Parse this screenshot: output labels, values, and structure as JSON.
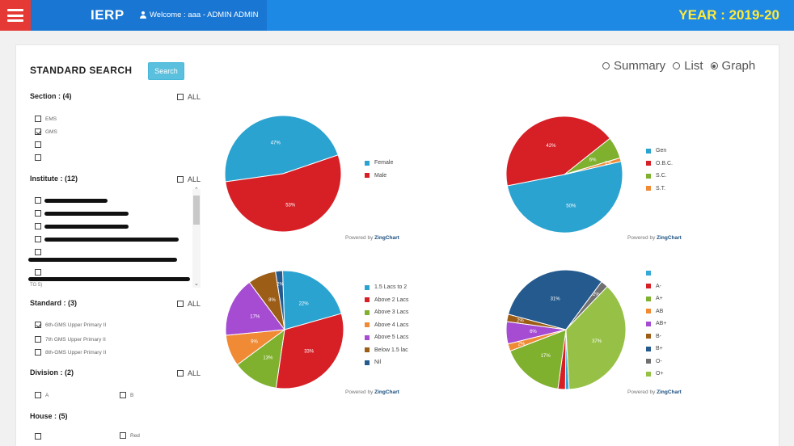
{
  "header": {
    "brand": "IERP",
    "welcome": "Welcome :  aaa - ADMIN ADMIN",
    "year": "YEAR : 2019-20"
  },
  "search": {
    "title": "STANDARD SEARCH",
    "button": "Search"
  },
  "view_options": [
    "Summary",
    "List",
    "Graph"
  ],
  "filters": {
    "all_label": "ALL",
    "section": {
      "label": "Section : (4)",
      "items": [
        {
          "label": "EMS",
          "checked": false
        },
        {
          "label": "GMS",
          "checked": true
        },
        {
          "label": "",
          "checked": false
        },
        {
          "label": "",
          "checked": false
        }
      ]
    },
    "institute": {
      "label": "Institute : (12)",
      "items": [
        "",
        "",
        "",
        "",
        "",
        "",
        ""
      ],
      "cut_label": "TO 5)"
    },
    "standard": {
      "label": "Standard : (3)",
      "items": [
        {
          "label": "6th-GMS Upper Primary II",
          "checked": true
        },
        {
          "label": "7th GMS Upper Primary II",
          "checked": false
        },
        {
          "label": "8th-GMS Upper Primary II",
          "checked": false
        }
      ]
    },
    "division": {
      "label": "Division : (2)",
      "items": [
        "A",
        "B"
      ]
    },
    "house": {
      "label": "House : (5)",
      "items": [
        "",
        "Red"
      ]
    }
  },
  "powered_by": {
    "prefix": "Powered by ",
    "brand": "ZingChart"
  },
  "colors": {
    "blue": "#2ba3d0",
    "red": "#d71f26",
    "green": "#7fb02e",
    "orange": "#f08a35",
    "purple": "#a54cd2",
    "brown": "#9c5d17",
    "navy": "#255a8e",
    "grey": "#707070",
    "lightgreen": "#97c146",
    "cyan": "#36a8d8"
  },
  "chart_data": [
    {
      "type": "pie",
      "series": [
        {
          "name": "Female",
          "value": 47,
          "label": "47%",
          "color": "#2ba3d0"
        },
        {
          "name": "Male",
          "value": 53,
          "label": "53%",
          "color": "#d71f26"
        }
      ]
    },
    {
      "type": "pie",
      "series": [
        {
          "name": "Gen",
          "value": 50,
          "label": "50%",
          "color": "#2ba3d0"
        },
        {
          "name": "O.B.C.",
          "value": 42,
          "label": "42%",
          "color": "#d71f26"
        },
        {
          "name": "S.C.",
          "value": 6,
          "label": "6%",
          "color": "#7fb02e"
        },
        {
          "name": "S.T.",
          "value": 1,
          "label": "1%",
          "color": "#f08a35"
        }
      ]
    },
    {
      "type": "pie",
      "series": [
        {
          "name": "1.5 Lacs to 2",
          "value": 22,
          "label": "22%",
          "color": "#2ba3d0"
        },
        {
          "name": "Above 2 Lacs",
          "value": 33,
          "label": "33%",
          "color": "#d71f26"
        },
        {
          "name": "Above 3 Lacs",
          "value": 13,
          "label": "13%",
          "color": "#7fb02e"
        },
        {
          "name": "Above 4 Lacs",
          "value": 9,
          "label": "9%",
          "color": "#f08a35"
        },
        {
          "name": "Above 5 Lacs",
          "value": 17,
          "label": "17%",
          "color": "#a54cd2"
        },
        {
          "name": "Below 1.5 lac",
          "value": 8,
          "label": "8%",
          "color": "#9c5d17"
        },
        {
          "name": "Nil",
          "value": 2,
          "label": "2%",
          "color": "#255a8e"
        }
      ]
    },
    {
      "type": "pie",
      "series": [
        {
          "name": "",
          "value": 1,
          "label": "",
          "color": "#36a8d8"
        },
        {
          "name": "A-",
          "value": 2,
          "label": "",
          "color": "#d71f26"
        },
        {
          "name": "A+",
          "value": 17,
          "label": "17%",
          "color": "#7fb02e"
        },
        {
          "name": "AB",
          "value": 2,
          "label": "2%",
          "color": "#f08a35"
        },
        {
          "name": "AB+",
          "value": 6,
          "label": "6%",
          "color": "#a54cd2"
        },
        {
          "name": "B-",
          "value": 2,
          "label": "2%",
          "color": "#9c5d17"
        },
        {
          "name": "B+",
          "value": 31,
          "label": "31%",
          "color": "#255a8e"
        },
        {
          "name": "O-",
          "value": 2,
          "label": "2%",
          "color": "#707070"
        },
        {
          "name": "O+",
          "value": 37,
          "label": "37%",
          "color": "#97c146"
        }
      ]
    }
  ]
}
